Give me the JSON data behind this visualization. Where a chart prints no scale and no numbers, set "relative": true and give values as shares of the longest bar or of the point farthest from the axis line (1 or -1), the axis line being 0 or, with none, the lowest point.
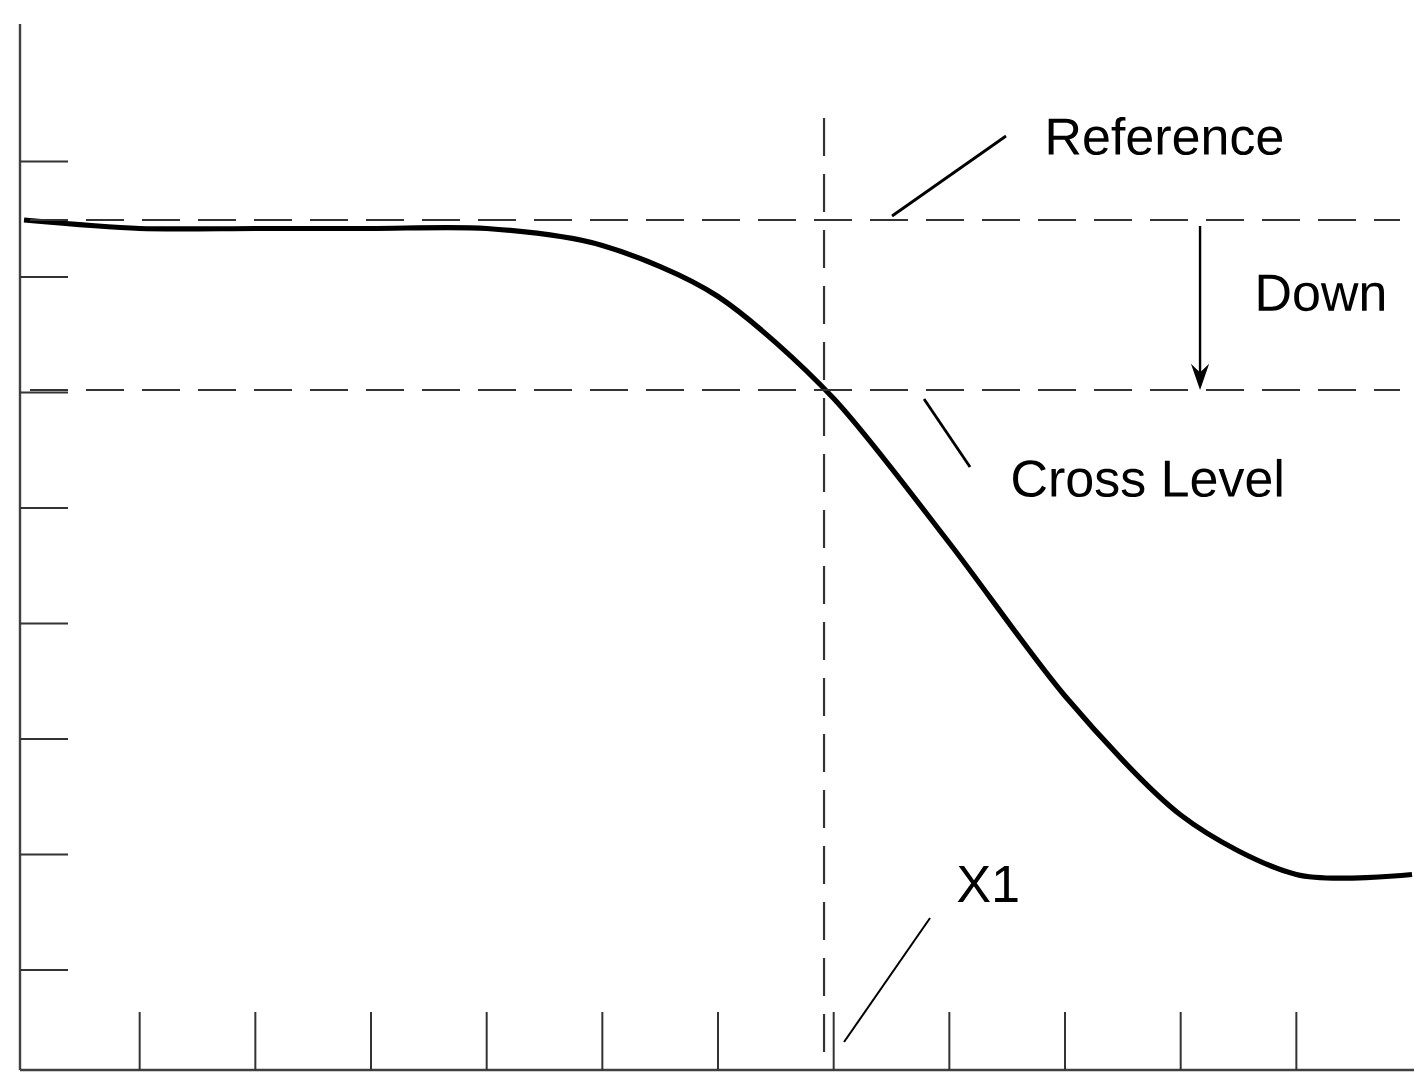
{
  "chart_data": {
    "type": "line",
    "relative": true,
    "categories": [
      null,
      null,
      null,
      null,
      null,
      null,
      null,
      null,
      null,
      null,
      null,
      null,
      null
    ],
    "series": [
      {
        "color": "#000000",
        "values": [
          1.0,
          0.99,
          0.99,
          0.99,
          0.99,
          0.97,
          0.91,
          0.79,
          0.62,
          0.44,
          0.3,
          0.23,
          0.23
        ]
      }
    ],
    "ref_lines": [
      {
        "axis": "y",
        "value": 1.0,
        "label": "Reference",
        "line_style": "dashed",
        "color": "#333333"
      },
      {
        "axis": "y",
        "value": 0.8,
        "label": "Cross Level",
        "line_style": "dashed",
        "color": "#333333"
      }
    ],
    "annotations": [
      "Down",
      "X1"
    ]
  }
}
